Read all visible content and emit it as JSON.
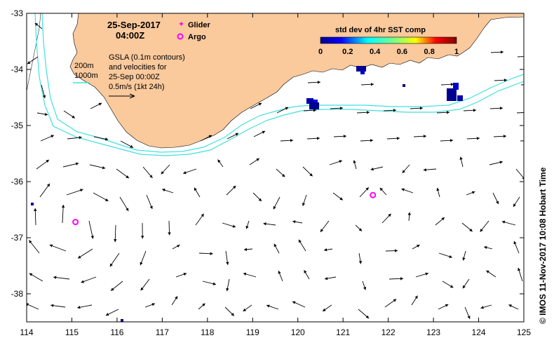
{
  "map": {
    "lon_range": [
      114,
      125
    ],
    "lat_range": [
      -38.5,
      -33
    ],
    "x_ticks": [
      "114",
      "115",
      "116",
      "117",
      "118",
      "119",
      "120",
      "121",
      "122",
      "123",
      "124",
      "125"
    ],
    "y_ticks": [
      "-33",
      "-34",
      "-35",
      "-36",
      "-37",
      "-38"
    ],
    "land_color": "#FAC99C",
    "contour_color": "#40E0E0"
  },
  "header": {
    "date": "25-Sep-2017",
    "time": "04:00Z"
  },
  "legend": {
    "glider_label": "Glider",
    "argo_label": "Argo",
    "glider_color": "#FF00FF",
    "argo_color": "#FF00FF"
  },
  "contours": {
    "label_200": "200m",
    "label_1000": "1000m"
  },
  "description": {
    "line1": "GSLA (0.1m contours)",
    "line2": "and velocities for",
    "line3": "25-Sep 00:00Z",
    "line4": "0.5m/s (1kt 24h)"
  },
  "colorbar": {
    "title": "std dev of 4hr SST comp",
    "ticks": [
      "0",
      "0.2",
      "0.4",
      "0.6",
      "0.8",
      "1"
    ],
    "stops": [
      "#00008F",
      "#0000FF",
      "#00FFFF",
      "#FFFF00",
      "#FF0000",
      "#800000"
    ]
  },
  "markers": {
    "argo_positions": [
      [
        115.08,
        -36.72
      ],
      [
        121.66,
        -36.24
      ]
    ]
  },
  "credit": "© IMOS 11-Nov-2017 10:08 Hobart Time"
}
